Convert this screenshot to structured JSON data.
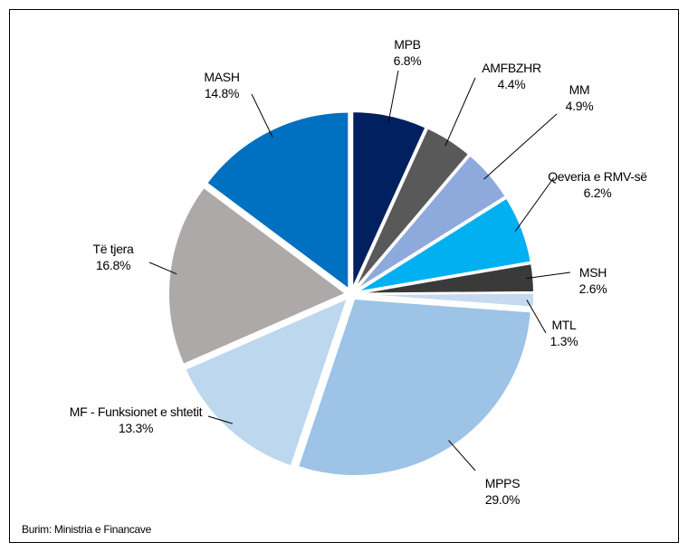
{
  "chart_data": {
    "type": "pie",
    "categories": [
      "MPB",
      "AMFBZHR",
      "MM",
      "Qeveria e RMV-së",
      "MSH",
      "MTL",
      "MPPS",
      "MF - Funksionet e shtetit",
      "Të tjera",
      "MASH"
    ],
    "values": [
      6.8,
      4.4,
      4.9,
      6.2,
      2.6,
      1.3,
      29.0,
      13.3,
      16.8,
      14.8
    ],
    "value_labels": [
      "6.8%",
      "4.4%",
      "4.9%",
      "6.2%",
      "2.6%",
      "1.3%",
      "29.0%",
      "13.3%",
      "16.8%",
      "14.8%"
    ],
    "colors": [
      "#002060",
      "#595959",
      "#8EA9DB",
      "#00B0F0",
      "#3A3A3A",
      "#C5D9F1",
      "#9DC3E6",
      "#BDD7EE",
      "#ADA9A8",
      "#0070C0"
    ],
    "source": "Burim: Ministria e Financave"
  }
}
